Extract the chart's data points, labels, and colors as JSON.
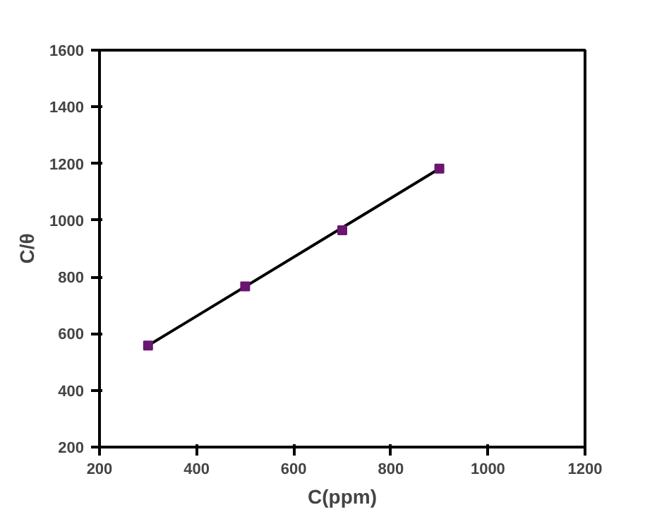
{
  "chart_data": {
    "type": "scatter",
    "xlabel": "C(ppm)",
    "ylabel": "C/θ",
    "xlim": [
      200,
      1200
    ],
    "ylim": [
      200,
      1600
    ],
    "xticks": [
      200,
      400,
      600,
      800,
      1000,
      1200
    ],
    "yticks": [
      200,
      400,
      600,
      800,
      1000,
      1200,
      1400,
      1600
    ],
    "grid": false,
    "series": [
      {
        "type": "line",
        "color": "#000000",
        "x": [
          300,
          900
        ],
        "values": [
          558,
          1182
        ],
        "line_style": "solid",
        "marker": "none"
      },
      {
        "color": "#6a1670",
        "x": [
          300,
          500,
          700,
          900
        ],
        "values": [
          558,
          767,
          965,
          1182
        ],
        "marker": "square"
      }
    ]
  }
}
